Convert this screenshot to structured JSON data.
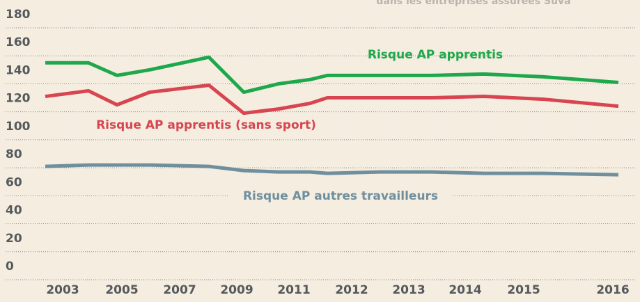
{
  "chart_data": {
    "type": "line",
    "subtitle": "dans les entreprises assurées Suva",
    "categories": [
      "2003",
      null,
      "2005",
      null,
      "2007",
      null,
      "2009",
      null,
      "2011",
      "2012",
      "2013",
      "2014",
      "2015",
      "2016"
    ],
    "series": [
      {
        "name": "Risque AP apprentis",
        "color": "#1ea84b",
        "values": [
          155,
          155,
          146,
          150,
          159,
          134,
          140,
          143,
          146,
          146,
          146,
          147,
          145,
          141
        ]
      },
      {
        "name": "Risque AP apprentis (sans sport)",
        "color": "#d84550",
        "values": [
          131,
          135,
          125,
          134,
          139,
          119,
          122,
          126,
          130,
          130,
          130,
          131,
          129,
          124
        ]
      },
      {
        "name": "Risque AP autres travailleurs",
        "color": "#6f8f9f",
        "values": [
          81,
          82,
          82,
          82,
          81,
          78,
          77,
          77,
          76,
          77,
          77,
          76,
          76,
          75
        ]
      }
    ],
    "ylim": [
      0,
      180
    ],
    "yticks": [
      0,
      20,
      40,
      60,
      80,
      100,
      120,
      140,
      160,
      180
    ],
    "grid": true
  }
}
